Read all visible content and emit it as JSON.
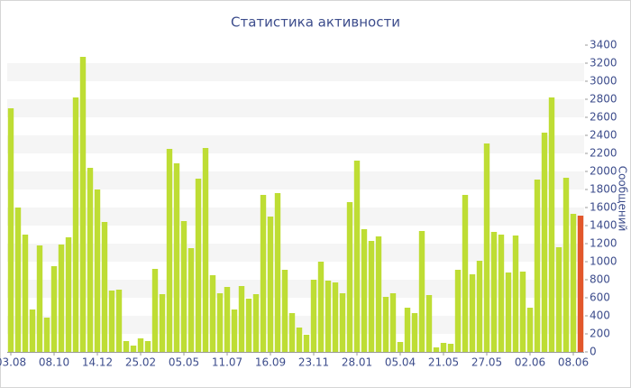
{
  "chart_data": {
    "type": "bar",
    "title": "Статистика активности",
    "y_label": "Сообщений",
    "categories": [
      "03.08",
      null,
      null,
      null,
      null,
      null,
      "08.10",
      null,
      null,
      null,
      null,
      null,
      "14.12",
      null,
      null,
      null,
      null,
      null,
      "25.02",
      null,
      null,
      null,
      null,
      null,
      "05.05",
      null,
      null,
      null,
      null,
      null,
      "11.07",
      null,
      null,
      null,
      null,
      null,
      "16.09",
      null,
      null,
      null,
      null,
      null,
      "23.11",
      null,
      null,
      null,
      null,
      null,
      "28.01",
      null,
      null,
      null,
      null,
      null,
      "05.04",
      null,
      null,
      null,
      null,
      null,
      "21.05",
      null,
      null,
      null,
      null,
      null,
      "27.05",
      null,
      null,
      null,
      null,
      null,
      "02.06",
      null,
      null,
      null,
      null,
      null,
      "08.06",
      null
    ],
    "values": [
      2700,
      1600,
      1300,
      470,
      1180,
      380,
      950,
      1190,
      1270,
      2820,
      3270,
      2040,
      1800,
      1440,
      680,
      690,
      120,
      70,
      150,
      120,
      920,
      640,
      2250,
      2090,
      1450,
      1150,
      1920,
      2260,
      850,
      650,
      720,
      470,
      730,
      590,
      640,
      1740,
      1500,
      1760,
      910,
      430,
      270,
      190,
      800,
      1000,
      790,
      770,
      650,
      1660,
      2120,
      1360,
      1230,
      1280,
      610,
      650,
      110,
      490,
      430,
      1340,
      630,
      50,
      100,
      90,
      910,
      1740,
      860,
      1010,
      2310,
      1330,
      1300,
      880,
      1290,
      890,
      490,
      1910,
      2430,
      2820,
      1160,
      1930,
      1530,
      1510
    ],
    "color": "#bedd34",
    "last_bar_color": "#e2572b",
    "ylim": [
      0,
      3400
    ],
    "yticks": [
      0,
      200,
      400,
      600,
      800,
      1000,
      1200,
      1400,
      1600,
      1800,
      2000,
      2200,
      2400,
      2600,
      2800,
      3000,
      3200,
      3400
    ],
    "grid": true
  }
}
